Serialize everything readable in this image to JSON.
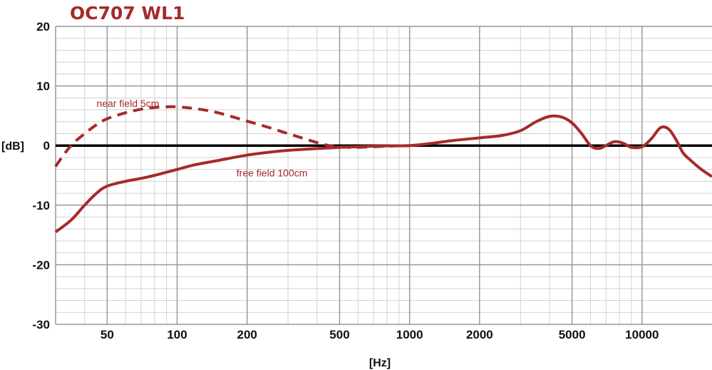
{
  "chart_data": {
    "type": "line",
    "title": "OC707 WL1",
    "xlabel": "[Hz]",
    "ylabel": "[dB]",
    "x_scale": "log",
    "xlim": [
      30,
      20000
    ],
    "ylim": [
      -30,
      20
    ],
    "x_ticks": [
      50,
      100,
      200,
      500,
      1000,
      2000,
      5000,
      10000
    ],
    "x_tick_labels": [
      "50",
      "100",
      "200",
      "500",
      "1000",
      "2000",
      "5000",
      "10000"
    ],
    "y_ticks": [
      20,
      10,
      0,
      -10,
      -20,
      -30
    ],
    "y_tick_labels": [
      "20",
      "10",
      "0",
      "-10",
      "-20",
      "-30"
    ],
    "grid": true,
    "colors": {
      "curve": "#a52a2a",
      "title": "#a52a2a",
      "zero_line": "#000000",
      "major_grid": "#999999",
      "minor_grid": "#d2d2d2"
    },
    "series": [
      {
        "name": "free field 100cm",
        "style": "solid",
        "x": [
          30,
          35,
          40,
          45,
          50,
          60,
          70,
          80,
          100,
          120,
          150,
          200,
          250,
          300,
          400,
          500,
          600,
          700,
          800,
          1000,
          1200,
          1500,
          2000,
          2500,
          3000,
          3500,
          4000,
          4500,
          5000,
          5500,
          6000,
          6500,
          7000,
          7500,
          8000,
          8500,
          9000,
          10000,
          11000,
          12000,
          13000,
          14000,
          15000,
          16000,
          18000,
          20000
        ],
        "y": [
          -14.5,
          -12.5,
          -10.0,
          -8.0,
          -6.8,
          -6.0,
          -5.5,
          -5.0,
          -4.0,
          -3.2,
          -2.5,
          -1.6,
          -1.1,
          -0.8,
          -0.5,
          -0.3,
          -0.2,
          -0.1,
          -0.05,
          0.0,
          0.3,
          0.8,
          1.3,
          1.7,
          2.5,
          4.0,
          4.9,
          4.8,
          3.8,
          2.0,
          0.0,
          -0.5,
          0.0,
          0.6,
          0.6,
          0.2,
          -0.3,
          -0.2,
          1.2,
          3.0,
          2.8,
          1.0,
          -1.2,
          -2.3,
          -4.0,
          -5.2
        ]
      },
      {
        "name": "near field 5cm",
        "style": "dashed",
        "x": [
          30,
          33,
          36,
          40,
          45,
          50,
          60,
          70,
          80,
          90,
          100,
          120,
          150,
          200,
          250,
          300,
          350,
          400,
          450,
          500,
          550,
          600,
          700,
          800,
          1000
        ],
        "y": [
          -3.5,
          -1.2,
          0.5,
          2.0,
          3.5,
          4.5,
          5.5,
          6.1,
          6.4,
          6.5,
          6.5,
          6.2,
          5.5,
          4.1,
          3.0,
          2.0,
          1.2,
          0.5,
          0.0,
          -0.2,
          -0.3,
          -0.3,
          -0.2,
          -0.1,
          0.0
        ]
      }
    ],
    "annotations": [
      {
        "text": "near field 5cm",
        "x": 45,
        "y": 6.5
      },
      {
        "text": "free field 100cm",
        "x": 180,
        "y": -5.2
      }
    ]
  }
}
